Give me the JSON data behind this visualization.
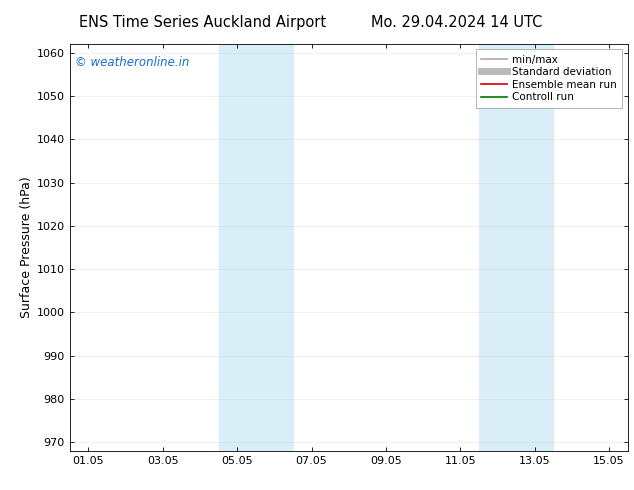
{
  "title_left": "ENS Time Series Auckland Airport",
  "title_right": "Mo. 29.04.2024 14 UTC",
  "ylabel": "Surface Pressure (hPa)",
  "ylim": [
    968,
    1062
  ],
  "yticks": [
    970,
    980,
    990,
    1000,
    1010,
    1020,
    1030,
    1040,
    1050,
    1060
  ],
  "xtick_labels": [
    "01.05",
    "03.05",
    "05.05",
    "07.05",
    "09.05",
    "11.05",
    "13.05",
    "15.05"
  ],
  "xtick_positions": [
    0,
    2,
    4,
    6,
    8,
    10,
    12,
    14
  ],
  "xlim": [
    -0.5,
    14.5
  ],
  "shaded_bands": [
    {
      "x_start": 3.5,
      "x_end": 4.5,
      "color": "#daeef8"
    },
    {
      "x_start": 4.5,
      "x_end": 5.5,
      "color": "#daeef8"
    },
    {
      "x_start": 10.5,
      "x_end": 11.5,
      "color": "#daeef8"
    },
    {
      "x_start": 11.5,
      "x_end": 12.5,
      "color": "#daeef8"
    }
  ],
  "copyright_text": "© weatheronline.in",
  "copyright_color": "#1a6ccc",
  "legend_items": [
    {
      "label": "min/max",
      "color": "#aaaaaa",
      "lw": 1.2,
      "style": "-"
    },
    {
      "label": "Standard deviation",
      "color": "#bbbbbb",
      "lw": 5,
      "style": "-"
    },
    {
      "label": "Ensemble mean run",
      "color": "#cc0000",
      "lw": 1.2,
      "style": "-"
    },
    {
      "label": "Controll run",
      "color": "#007700",
      "lw": 1.2,
      "style": "-"
    }
  ],
  "background_color": "#ffffff",
  "grid_color": "#cccccc",
  "title_fontsize": 10.5,
  "ylabel_fontsize": 9,
  "tick_fontsize": 8,
  "legend_fontsize": 7.5,
  "copyright_fontsize": 8.5
}
